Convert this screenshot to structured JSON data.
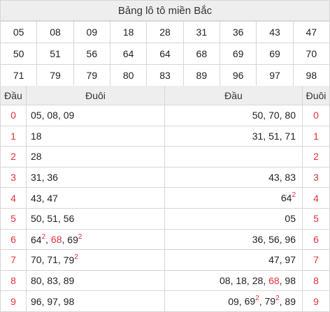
{
  "title": "Bảng lô tô miền Bắc",
  "numbers": [
    [
      {
        "v": "05"
      },
      {
        "v": "08"
      },
      {
        "v": "09"
      },
      {
        "v": "18"
      },
      {
        "v": "28"
      },
      {
        "v": "31"
      },
      {
        "v": "36"
      },
      {
        "v": "43"
      },
      {
        "v": "47"
      }
    ],
    [
      {
        "v": "50"
      },
      {
        "v": "51"
      },
      {
        "v": "56"
      },
      {
        "v": "64"
      },
      {
        "v": "64"
      },
      {
        "v": "68",
        "red": true
      },
      {
        "v": "69"
      },
      {
        "v": "69"
      },
      {
        "v": "70"
      }
    ],
    [
      {
        "v": "71"
      },
      {
        "v": "79"
      },
      {
        "v": "79"
      },
      {
        "v": "80"
      },
      {
        "v": "83"
      },
      {
        "v": "89"
      },
      {
        "v": "96"
      },
      {
        "v": "97"
      },
      {
        "v": "98"
      }
    ]
  ],
  "headers": {
    "dau_left": "Đầu",
    "duoi_left": "Đuôi",
    "dau_right": "Đầu",
    "duoi_right": "Đuôi"
  },
  "rows": [
    {
      "digit": "0",
      "tails": [
        {
          "t": "05"
        },
        {
          "t": "08"
        },
        {
          "t": "09"
        }
      ],
      "heads": [
        {
          "t": "50"
        },
        {
          "t": "70"
        },
        {
          "t": "80"
        }
      ]
    },
    {
      "digit": "1",
      "tails": [
        {
          "t": "18"
        }
      ],
      "heads": [
        {
          "t": "31"
        },
        {
          "t": "51"
        },
        {
          "t": "71"
        }
      ]
    },
    {
      "digit": "2",
      "tails": [
        {
          "t": "28"
        }
      ],
      "heads": []
    },
    {
      "digit": "3",
      "tails": [
        {
          "t": "31"
        },
        {
          "t": "36"
        }
      ],
      "heads": [
        {
          "t": "43"
        },
        {
          "t": "83"
        }
      ]
    },
    {
      "digit": "4",
      "tails": [
        {
          "t": "43"
        },
        {
          "t": "47"
        }
      ],
      "heads": [
        {
          "t": "64",
          "sup": "2"
        }
      ]
    },
    {
      "digit": "5",
      "tails": [
        {
          "t": "50"
        },
        {
          "t": "51"
        },
        {
          "t": "56"
        }
      ],
      "heads": [
        {
          "t": "05"
        }
      ]
    },
    {
      "digit": "6",
      "tails": [
        {
          "t": "64",
          "sup": "2"
        },
        {
          "t": "68",
          "red": true
        },
        {
          "t": "69",
          "sup": "2"
        }
      ],
      "heads": [
        {
          "t": "36"
        },
        {
          "t": "56"
        },
        {
          "t": "96"
        }
      ]
    },
    {
      "digit": "7",
      "tails": [
        {
          "t": "70"
        },
        {
          "t": "71"
        },
        {
          "t": "79",
          "sup": "2"
        }
      ],
      "heads": [
        {
          "t": "47"
        },
        {
          "t": "97"
        }
      ]
    },
    {
      "digit": "8",
      "tails": [
        {
          "t": "80"
        },
        {
          "t": "83"
        },
        {
          "t": "89"
        }
      ],
      "heads": [
        {
          "t": "08"
        },
        {
          "t": "18"
        },
        {
          "t": "28"
        },
        {
          "t": "68",
          "red": true
        },
        {
          "t": "98"
        }
      ]
    },
    {
      "digit": "9",
      "tails": [
        {
          "t": "96"
        },
        {
          "t": "97"
        },
        {
          "t": "98"
        }
      ],
      "heads": [
        {
          "t": "09"
        },
        {
          "t": "69",
          "sup": "2"
        },
        {
          "t": "79",
          "sup": "2"
        },
        {
          "t": "89"
        }
      ]
    }
  ],
  "colors": {
    "accent_red": "#e0303a",
    "header_bg": "#eeeeee",
    "border": "#d7d7d7"
  }
}
